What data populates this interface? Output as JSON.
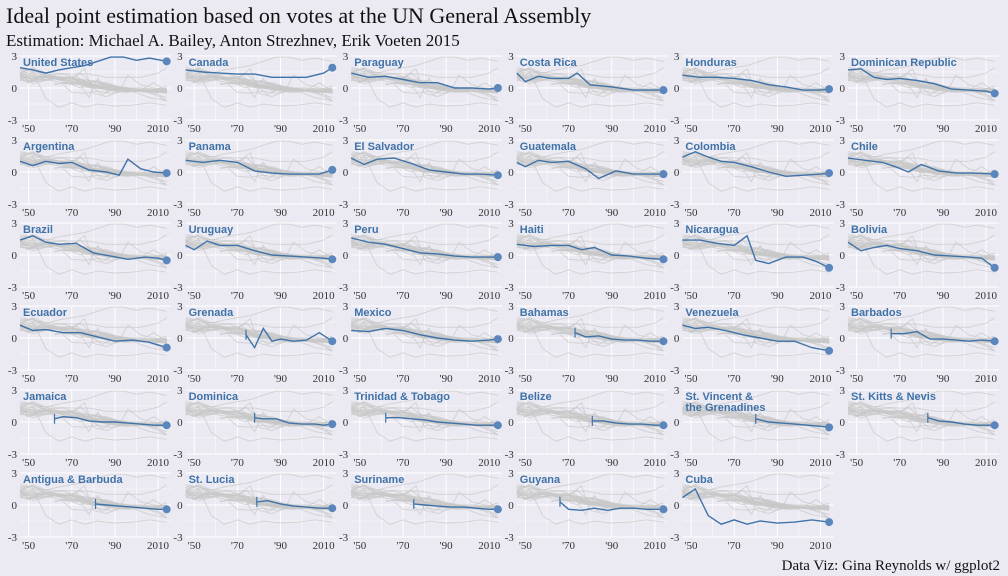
{
  "title": "Ideal point estimation based on votes at the UN General Assembly",
  "subtitle": "Estimation: Michael A. Bailey, Anton Strezhnev, Erik Voeten 2015",
  "caption": "Data Viz: Gina Reynolds w/ ggplot2",
  "colors": {
    "background": "#ebe9f1",
    "grid": "#ffffff",
    "context": "#c8c8c8",
    "highlight": "#3f72a8"
  },
  "chart_data": {
    "type": "line",
    "layout": "small-multiples",
    "xlim": [
      1946,
      2016
    ],
    "ylim": [
      -3,
      3
    ],
    "x_ticks": [
      1950,
      1970,
      1990,
      2010
    ],
    "x_tick_labels": [
      "'50",
      "'70",
      "'90",
      "2010"
    ],
    "y_ticks": [
      -3,
      0,
      3
    ],
    "y_tick_labels": [
      "-3",
      "0",
      "3"
    ],
    "panels": [
      {
        "name": "United States",
        "x": [
          1946,
          1952,
          1958,
          1964,
          1970,
          1976,
          1982,
          1988,
          1994,
          2000,
          2006,
          2014
        ],
        "y": [
          1.9,
          1.7,
          1.4,
          1.7,
          1.9,
          2.1,
          2.5,
          2.9,
          2.9,
          2.6,
          2.8,
          2.5
        ]
      },
      {
        "name": "Canada",
        "x": [
          1946,
          1954,
          1962,
          1970,
          1978,
          1986,
          1994,
          2002,
          2010,
          2014
        ],
        "y": [
          1.7,
          1.5,
          1.4,
          1.3,
          1.3,
          1.0,
          1.0,
          1.0,
          1.4,
          1.9
        ]
      },
      {
        "name": "Paraguay",
        "x": [
          1946,
          1954,
          1962,
          1970,
          1978,
          1986,
          1994,
          2002,
          2010,
          2014
        ],
        "y": [
          1.4,
          1.0,
          1.1,
          0.8,
          0.5,
          0.5,
          0.0,
          0.0,
          -0.1,
          0.0
        ]
      },
      {
        "name": "Costa Rica",
        "x": [
          1946,
          1950,
          1956,
          1962,
          1970,
          1974,
          1980,
          1990,
          2000,
          2008,
          2014
        ],
        "y": [
          1.4,
          0.6,
          1.1,
          0.9,
          0.9,
          1.4,
          0.3,
          0.1,
          -0.2,
          -0.2,
          -0.2
        ]
      },
      {
        "name": "Honduras",
        "x": [
          1946,
          1954,
          1962,
          1970,
          1978,
          1986,
          1994,
          2002,
          2010,
          2014
        ],
        "y": [
          1.2,
          1.0,
          1.0,
          0.9,
          0.7,
          0.3,
          0.1,
          -0.2,
          -0.2,
          -0.1
        ]
      },
      {
        "name": "Dominican Republic",
        "x": [
          1946,
          1952,
          1958,
          1964,
          1970,
          1978,
          1986,
          1994,
          2002,
          2010,
          2014
        ],
        "y": [
          1.7,
          1.8,
          1.0,
          0.8,
          0.9,
          0.7,
          0.4,
          -0.1,
          -0.2,
          -0.3,
          -0.5
        ]
      },
      {
        "name": "Argentina",
        "x": [
          1946,
          1952,
          1958,
          1964,
          1970,
          1978,
          1986,
          1992,
          1996,
          2002,
          2008,
          2014
        ],
        "y": [
          1.0,
          0.6,
          1.0,
          0.8,
          0.9,
          0.2,
          0.0,
          -0.3,
          1.2,
          0.3,
          0.0,
          -0.1
        ]
      },
      {
        "name": "Panama",
        "x": [
          1946,
          1954,
          1962,
          1970,
          1978,
          1986,
          1994,
          2002,
          2008,
          2014
        ],
        "y": [
          1.1,
          0.9,
          1.1,
          0.9,
          0.1,
          -0.1,
          -0.2,
          -0.2,
          -0.2,
          0.2
        ]
      },
      {
        "name": "El Salvador",
        "x": [
          1946,
          1952,
          1958,
          1966,
          1974,
          1982,
          1990,
          1998,
          2006,
          2014
        ],
        "y": [
          1.3,
          0.7,
          1.2,
          1.3,
          0.8,
          0.2,
          0.0,
          -0.2,
          -0.2,
          -0.3
        ]
      },
      {
        "name": "Guatemala",
        "x": [
          1946,
          1950,
          1956,
          1962,
          1970,
          1978,
          1984,
          1992,
          2000,
          2008,
          2014
        ],
        "y": [
          0.9,
          0.5,
          1.1,
          0.9,
          1.0,
          0.3,
          -0.6,
          0.1,
          -0.2,
          -0.2,
          -0.2
        ]
      },
      {
        "name": "Colombia",
        "x": [
          1946,
          1952,
          1958,
          1964,
          1970,
          1978,
          1986,
          1994,
          2002,
          2010,
          2014
        ],
        "y": [
          1.4,
          1.9,
          1.4,
          1.0,
          0.9,
          0.5,
          0.0,
          -0.4,
          -0.3,
          -0.2,
          -0.1
        ]
      },
      {
        "name": "Chile",
        "x": [
          1946,
          1954,
          1962,
          1968,
          1974,
          1980,
          1988,
          1996,
          2004,
          2014
        ],
        "y": [
          1.3,
          1.1,
          0.9,
          0.5,
          0.0,
          0.7,
          0.1,
          -0.1,
          -0.1,
          -0.2
        ]
      },
      {
        "name": "Brazil",
        "x": [
          1946,
          1952,
          1958,
          1964,
          1972,
          1980,
          1988,
          1996,
          2004,
          2010,
          2014
        ],
        "y": [
          1.4,
          1.8,
          1.2,
          1.0,
          1.1,
          0.2,
          -0.1,
          -0.4,
          -0.2,
          -0.3,
          -0.5
        ]
      },
      {
        "name": "Uruguay",
        "x": [
          1946,
          1950,
          1956,
          1962,
          1970,
          1978,
          1986,
          1994,
          2002,
          2010,
          2014
        ],
        "y": [
          0.9,
          0.5,
          1.3,
          0.9,
          0.9,
          0.4,
          0.0,
          -0.1,
          -0.2,
          -0.3,
          -0.4
        ]
      },
      {
        "name": "Peru",
        "x": [
          1946,
          1954,
          1962,
          1970,
          1978,
          1986,
          1994,
          2002,
          2010,
          2014
        ],
        "y": [
          1.6,
          1.2,
          1.0,
          0.6,
          0.2,
          0.1,
          -0.1,
          -0.2,
          -0.2,
          -0.2
        ]
      },
      {
        "name": "Haiti",
        "x": [
          1946,
          1954,
          1962,
          1970,
          1976,
          1982,
          1990,
          1998,
          2006,
          2014
        ],
        "y": [
          1.0,
          0.8,
          0.9,
          0.9,
          0.5,
          0.7,
          0.0,
          -0.1,
          -0.3,
          -0.4
        ]
      },
      {
        "name": "Nicaragua",
        "x": [
          1946,
          1954,
          1962,
          1970,
          1976,
          1980,
          1986,
          1994,
          2002,
          2008,
          2014
        ],
        "y": [
          1.4,
          1.4,
          1.1,
          0.9,
          1.8,
          -0.5,
          -0.8,
          -0.2,
          -0.2,
          -0.6,
          -1.2
        ]
      },
      {
        "name": "Bolivia",
        "x": [
          1946,
          1952,
          1958,
          1964,
          1970,
          1978,
          1986,
          1994,
          2002,
          2008,
          2014
        ],
        "y": [
          1.2,
          0.4,
          0.7,
          0.9,
          0.6,
          0.4,
          0.0,
          -0.1,
          -0.2,
          -0.3,
          -1.2
        ]
      },
      {
        "name": "Ecuador",
        "x": [
          1946,
          1952,
          1958,
          1966,
          1974,
          1982,
          1990,
          1998,
          2006,
          2014
        ],
        "y": [
          1.2,
          0.7,
          0.8,
          0.5,
          0.5,
          0.1,
          -0.3,
          -0.2,
          -0.4,
          -0.9
        ]
      },
      {
        "name": "Grenada",
        "x": [
          1974,
          1978,
          1982,
          1986,
          1990,
          1996,
          2002,
          2008,
          2014
        ],
        "y": [
          0.3,
          -0.9,
          0.9,
          -0.3,
          -0.1,
          -0.3,
          -0.2,
          0.5,
          -0.3
        ]
      },
      {
        "name": "Mexico",
        "x": [
          1946,
          1954,
          1962,
          1970,
          1978,
          1986,
          1994,
          2002,
          2010,
          2014
        ],
        "y": [
          0.7,
          0.6,
          0.9,
          0.7,
          0.3,
          0.0,
          -0.2,
          -0.3,
          -0.2,
          -0.1
        ]
      },
      {
        "name": "Bahamas",
        "x": [
          1973,
          1978,
          1984,
          1990,
          1996,
          2002,
          2008,
          2014
        ],
        "y": [
          0.5,
          0.1,
          0.2,
          -0.1,
          -0.2,
          -0.2,
          -0.3,
          -0.3
        ]
      },
      {
        "name": "Venezuela",
        "x": [
          1946,
          1952,
          1958,
          1966,
          1974,
          1982,
          1990,
          1998,
          2006,
          2014
        ],
        "y": [
          1.2,
          0.9,
          1.0,
          0.7,
          0.3,
          0.0,
          -0.3,
          -0.3,
          -0.9,
          -1.2
        ]
      },
      {
        "name": "Barbados",
        "x": [
          1966,
          1972,
          1978,
          1984,
          1990,
          1996,
          2002,
          2008,
          2014
        ],
        "y": [
          0.4,
          0.4,
          0.6,
          -0.1,
          -0.1,
          -0.2,
          -0.3,
          -0.2,
          -0.3
        ]
      },
      {
        "name": "Jamaica",
        "x": [
          1962,
          1966,
          1972,
          1978,
          1984,
          1990,
          1996,
          2002,
          2008,
          2014
        ],
        "y": [
          0.3,
          0.5,
          0.4,
          0.1,
          0.0,
          0.0,
          -0.1,
          -0.2,
          -0.3,
          -0.3
        ]
      },
      {
        "name": "Dominica",
        "x": [
          1978,
          1982,
          1988,
          1994,
          2000,
          2006,
          2010,
          2014
        ],
        "y": [
          0.4,
          0.3,
          0.3,
          -0.1,
          -0.2,
          -0.2,
          -0.3,
          -0.2
        ]
      },
      {
        "name": "Trinidad & Tobago",
        "x": [
          1962,
          1968,
          1974,
          1980,
          1986,
          1992,
          1998,
          2004,
          2010,
          2014
        ],
        "y": [
          0.4,
          0.4,
          0.3,
          0.2,
          0.0,
          -0.1,
          -0.2,
          -0.3,
          -0.3,
          -0.3
        ]
      },
      {
        "name": "Belize",
        "x": [
          1981,
          1986,
          1992,
          1998,
          2004,
          2010,
          2014
        ],
        "y": [
          0.1,
          0.1,
          -0.1,
          -0.2,
          -0.2,
          -0.3,
          -0.3
        ]
      },
      {
        "name": "St. Vincent & the Grenadines",
        "x": [
          1980,
          1986,
          1992,
          1998,
          2004,
          2010,
          2014
        ],
        "y": [
          0.3,
          0.0,
          -0.1,
          -0.2,
          -0.3,
          -0.4,
          -0.5
        ]
      },
      {
        "name": "St. Kitts & Nevis",
        "x": [
          1983,
          1988,
          1994,
          2000,
          2006,
          2010,
          2014
        ],
        "y": [
          0.4,
          0.1,
          0.0,
          -0.2,
          -0.3,
          -0.3,
          -0.3
        ]
      },
      {
        "name": "Antigua & Barbuda",
        "x": [
          1981,
          1986,
          1992,
          1998,
          2004,
          2010,
          2014
        ],
        "y": [
          0.1,
          0.0,
          -0.1,
          -0.2,
          -0.3,
          -0.4,
          -0.4
        ]
      },
      {
        "name": "St. Lucia",
        "x": [
          1979,
          1984,
          1990,
          1996,
          2002,
          2008,
          2014
        ],
        "y": [
          0.3,
          0.4,
          0.1,
          -0.1,
          -0.2,
          -0.3,
          -0.3
        ]
      },
      {
        "name": "Suriname",
        "x": [
          1975,
          1980,
          1986,
          1992,
          1998,
          2004,
          2010,
          2014
        ],
        "y": [
          0.1,
          0.0,
          -0.1,
          -0.2,
          -0.2,
          -0.3,
          -0.4,
          -0.4
        ]
      },
      {
        "name": "Guyana",
        "x": [
          1966,
          1970,
          1976,
          1982,
          1988,
          1994,
          2000,
          2006,
          2014
        ],
        "y": [
          0.3,
          -0.4,
          -0.5,
          -0.3,
          -0.5,
          -0.3,
          -0.3,
          -0.4,
          -0.4
        ]
      },
      {
        "name": "Cuba",
        "x": [
          1946,
          1952,
          1958,
          1964,
          1970,
          1976,
          1982,
          1990,
          1998,
          2006,
          2014
        ],
        "y": [
          0.7,
          1.5,
          -1.0,
          -1.8,
          -1.4,
          -1.8,
          -1.5,
          -1.7,
          -1.6,
          -1.4,
          -1.6
        ]
      }
    ]
  }
}
